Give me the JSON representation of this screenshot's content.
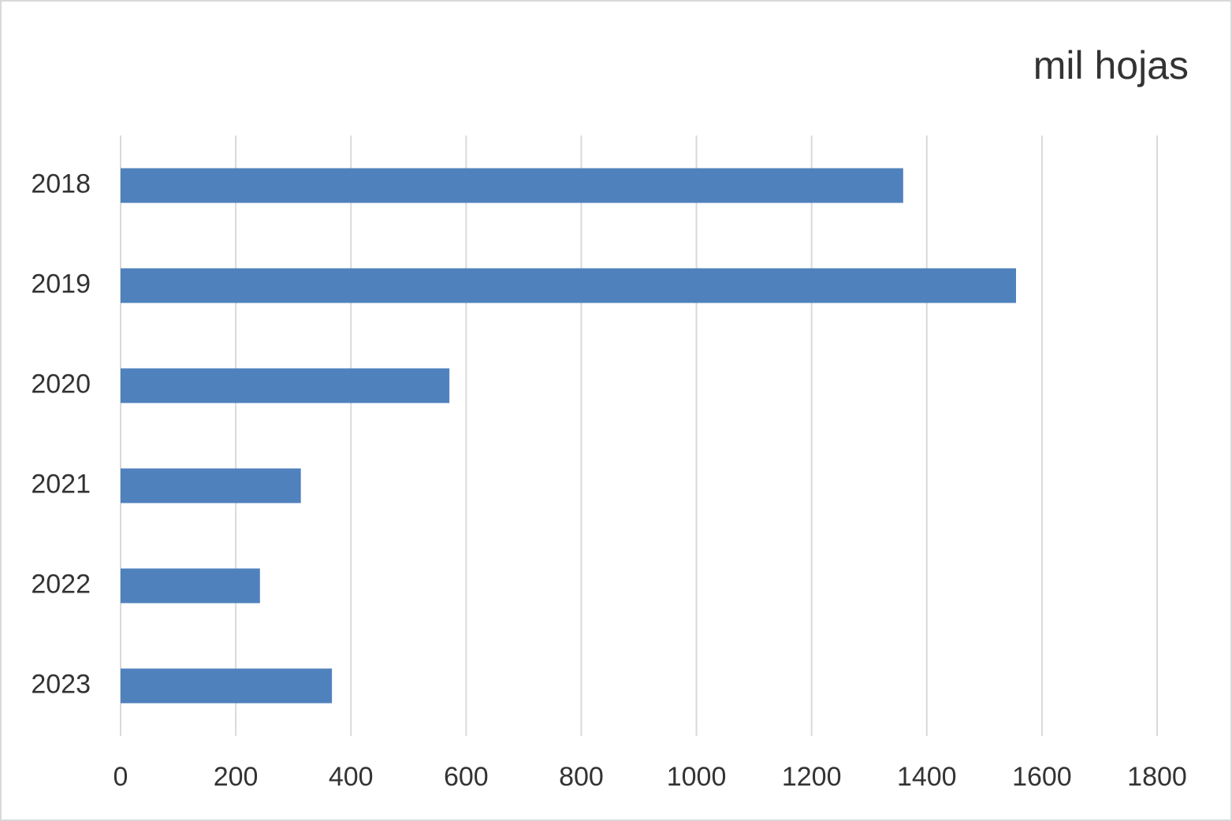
{
  "chart_data": {
    "type": "bar",
    "orientation": "horizontal",
    "title": "mil hojas",
    "categories": [
      "2018",
      "2019",
      "2020",
      "2021",
      "2022",
      "2023"
    ],
    "values": [
      1359,
      1555,
      571,
      313,
      242,
      367
    ],
    "color": "#4f81bd",
    "xlim": [
      0,
      1800
    ],
    "xticks": [
      0,
      200,
      400,
      600,
      800,
      1000,
      1200,
      1400,
      1600,
      1800
    ],
    "grid": true
  }
}
